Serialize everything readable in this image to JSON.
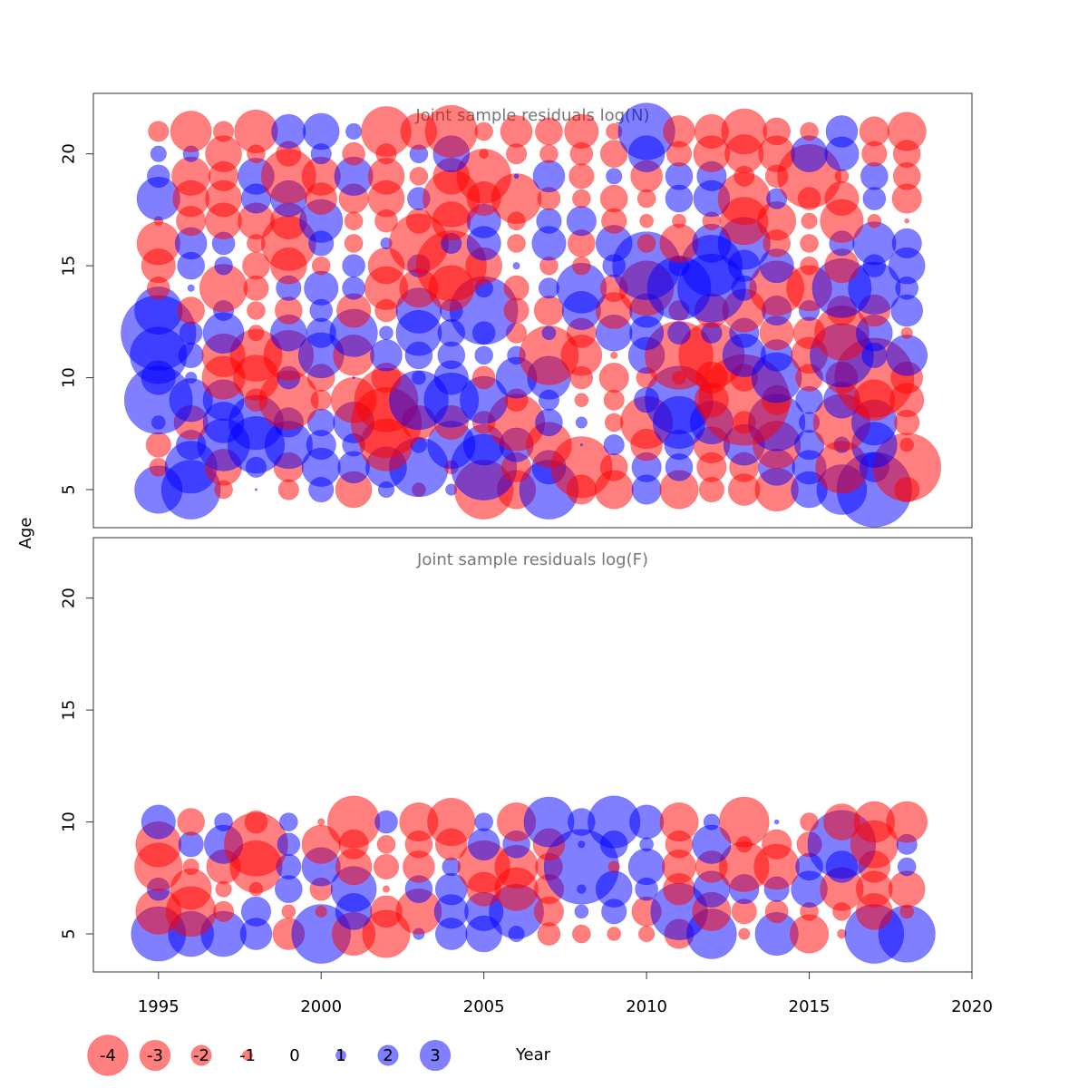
{
  "colors": {
    "negative": "#ff0000",
    "positive": "#0000ff",
    "bubble_opacity": 0.5,
    "panel_title": "#777777",
    "axis": "#333333"
  },
  "chart_data": [
    {
      "type": "scatter",
      "encoding": "bubble",
      "title": "Joint sample residuals log(N)",
      "xlabel": "Year",
      "ylabel": "Age",
      "xlim": [
        1993,
        2020
      ],
      "ylim": [
        3.3,
        22.7
      ],
      "xticks": [
        1995,
        2000,
        2005,
        2010,
        2015,
        2020
      ],
      "yticks": [
        5,
        10,
        15,
        20
      ],
      "grid": false,
      "years": [
        1995,
        1996,
        1997,
        1998,
        1999,
        2000,
        2001,
        2002,
        2003,
        2004,
        2005,
        2006,
        2007,
        2008,
        2009,
        2010,
        2011,
        2012,
        2013,
        2014,
        2015,
        2016,
        2017,
        2018
      ],
      "ages": [
        5,
        6,
        7,
        8,
        9,
        10,
        11,
        12,
        13,
        14,
        15,
        16,
        17,
        18,
        19,
        20,
        21
      ],
      "residuals_by_age": [
        [
          2.1,
          2.6,
          -0.8,
          0.1,
          -0.9,
          1.1,
          -1.6,
          0.7,
          -0.6,
          0.5,
          -2.6,
          -1.7,
          2.6,
          -1.3,
          -1.7,
          1.3,
          -1.7,
          -1.1,
          -1.4,
          -1.9,
          1.6,
          2.2,
          3.3,
          -1.1
        ],
        [
          -0.8,
          2.3,
          -1.6,
          0.9,
          -1.3,
          1.7,
          1.4,
          1.8,
          2.6,
          -0.6,
          2.9,
          -1.3,
          1.5,
          -2.7,
          -1.2,
          1.3,
          1.2,
          -1.3,
          -1.3,
          1.6,
          1.5,
          -2.3,
          1.3,
          -3.0
        ],
        [
          -1.1,
          1.3,
          2.3,
          2.5,
          2.1,
          1.3,
          1.0,
          -2.3,
          0.7,
          2.1,
          1.8,
          1.5,
          -2.0,
          0.1,
          0.9,
          -1.4,
          1.3,
          -1.6,
          1.8,
          -2.1,
          1.3,
          0.7,
          2.0,
          -0.6
        ],
        [
          0.6,
          -1.5,
          1.8,
          2.4,
          1.3,
          1.2,
          1.8,
          -3.1,
          -1.5,
          -1.5,
          -1.0,
          -2.5,
          1.2,
          0.5,
          -0.8,
          -2.3,
          2.3,
          1.9,
          -1.0,
          2.5,
          0.9,
          -2.5,
          2.0,
          -1.1
        ],
        [
          3.0,
          1.9,
          1.8,
          -1.0,
          -2.6,
          -0.9,
          -2.0,
          -2.8,
          2.6,
          2.4,
          2.1,
          -1.0,
          0.9,
          -0.6,
          -0.9,
          1.1,
          3.0,
          -1.5,
          -4.0,
          -1.3,
          1.2,
          1.6,
          -1.8,
          -1.5
        ],
        [
          1.5,
          0.5,
          -1.9,
          -2.0,
          1.0,
          -1.2,
          0.1,
          -1.3,
          0.6,
          1.5,
          -1.0,
          1.8,
          1.9,
          -1.0,
          -1.3,
          -0.9,
          -0.6,
          -1.4,
          -1.2,
          2.2,
          -1.2,
          -1.4,
          -3.5,
          -1.4
        ],
        [
          2.5,
          1.1,
          -1.9,
          -2.3,
          -2.2,
          2.0,
          -1.8,
          1.4,
          1.2,
          1.2,
          0.8,
          0.8,
          -2.6,
          -1.8,
          -0.3,
          1.6,
          -3.0,
          -2.9,
          1.9,
          1.4,
          -1.6,
          2.8,
          1.1,
          1.8
        ],
        [
          3.3,
          1.0,
          1.8,
          -0.7,
          1.6,
          1.3,
          2.1,
          0.6,
          2.0,
          1.2,
          1.0,
          -0.9,
          0.6,
          -1.3,
          1.6,
          1.5,
          1.0,
          0.9,
          1.3,
          -1.5,
          -1.4,
          -2.4,
          1.6,
          -0.5
        ],
        [
          2.1,
          -1.2,
          0.9,
          -0.8,
          -1.2,
          1.0,
          -1.5,
          -1.0,
          2.0,
          1.0,
          3.0,
          -1.1,
          -1.3,
          1.7,
          -1.6,
          1.5,
          -0.9,
          -1.5,
          -1.9,
          1.3,
          0.9,
          -1.3,
          -1.4,
          1.4
        ],
        [
          -1.0,
          0.3,
          -2.1,
          -1.1,
          1.1,
          1.5,
          1.0,
          -1.9,
          -1.7,
          -2.0,
          0.8,
          -1.1,
          0.9,
          2.2,
          -1.2,
          -2.4,
          2.8,
          3.0,
          1.1,
          -2.4,
          -2.0,
          2.6,
          2.3,
          1.0
        ],
        [
          -1.5,
          1.2,
          0.8,
          -1.2,
          -1.6,
          -0.8,
          1.0,
          -1.6,
          1.0,
          -3.1,
          -1.6,
          0.3,
          -0.8,
          -0.8,
          1.0,
          3.0,
          0.9,
          2.7,
          1.4,
          1.5,
          -0.8,
          -1.5,
          1.0,
          1.6
        ],
        [
          -1.9,
          1.4,
          1.0,
          -0.8,
          -2.4,
          1.1,
          -0.8,
          0.5,
          -2.6,
          0.9,
          1.5,
          -0.8,
          1.5,
          -1.2,
          1.6,
          -0.8,
          -1.7,
          1.7,
          2.3,
          -1.2,
          -0.8,
          1.1,
          1.9,
          1.3
        ],
        [
          -0.4,
          -1.3,
          -1.6,
          -1.6,
          -1.6,
          1.9,
          -0.8,
          -1.0,
          -1.1,
          -1.7,
          1.5,
          -0.8,
          1.1,
          1.3,
          -1.1,
          -0.6,
          -0.6,
          -0.8,
          -2.1,
          -1.7,
          -0.7,
          -1.9,
          -0.6,
          -0.2
        ],
        [
          1.9,
          -1.6,
          -1.6,
          1.3,
          1.6,
          -1.4,
          -1.3,
          -1.6,
          1.0,
          -2.5,
          -1.5,
          -2.2,
          -1.0,
          -0.8,
          -1.2,
          -0.8,
          1.2,
          1.6,
          -2.3,
          0.9,
          -1.0,
          -1.5,
          1.0,
          -1.3
        ],
        [
          1.0,
          -1.7,
          -1.3,
          1.6,
          -2.4,
          -1.7,
          1.7,
          -1.6,
          -0.8,
          -1.6,
          -2.4,
          0.2,
          1.4,
          -1.1,
          0.7,
          -1.4,
          1.2,
          1.3,
          -0.9,
          -1.0,
          -2.8,
          -0.6,
          1.2,
          -1.2
        ],
        [
          0.7,
          0.7,
          -1.6,
          -0.8,
          -1.1,
          0.9,
          -1.0,
          -0.9,
          0.8,
          1.6,
          -0.4,
          -0.9,
          -0.8,
          -1.0,
          -1.2,
          1.6,
          -1.1,
          -1.6,
          -1.7,
          -1.6,
          1.6,
          1.5,
          -1.1,
          -1.2
        ],
        [
          -0.9,
          -1.8,
          -0.9,
          -1.9,
          1.5,
          1.6,
          0.7,
          -2.2,
          -1.6,
          -2.3,
          -0.8,
          -1.4,
          -1.2,
          -1.5,
          -0.7,
          2.5,
          -1.4,
          -1.5,
          -2.0,
          -1.2,
          -0.8,
          1.4,
          -1.3,
          -1.7
        ]
      ]
    },
    {
      "type": "scatter",
      "encoding": "bubble",
      "title": "Joint sample residuals log(F)",
      "xlabel": "Year",
      "ylabel": "Age",
      "xlim": [
        1993,
        2020
      ],
      "ylim": [
        3.3,
        22.7
      ],
      "xticks": [
        1995,
        2000,
        2005,
        2010,
        2015,
        2020
      ],
      "yticks": [
        5,
        10,
        15,
        20
      ],
      "grid": false,
      "years": [
        1995,
        1996,
        1997,
        1998,
        1999,
        2000,
        2001,
        2002,
        2003,
        2004,
        2005,
        2006,
        2007,
        2008,
        2009,
        2010,
        2011,
        2012,
        2013,
        2014,
        2015,
        2016,
        2017,
        2018
      ],
      "ages": [
        5,
        6,
        7,
        8,
        9,
        10
      ],
      "residuals_by_age": [
        [
          2.4,
          2.0,
          2.0,
          1.4,
          -1.4,
          2.6,
          -1.9,
          -2.1,
          0.5,
          1.4,
          1.6,
          0.7,
          -1.0,
          -0.8,
          -0.6,
          -0.7,
          -1.3,
          2.2,
          -0.5,
          1.9,
          -1.7,
          -0.4,
          2.6,
          2.5
        ],
        [
          -2.0,
          -2.2,
          -0.9,
          1.3,
          -0.6,
          -0.5,
          1.6,
          -1.4,
          -2.0,
          1.5,
          1.7,
          2.4,
          -1.3,
          0.6,
          1.1,
          -1.3,
          2.5,
          -1.7,
          -1.1,
          -1.0,
          -0.8,
          -0.8,
          -1.6,
          -0.6
        ],
        [
          1.0,
          -1.8,
          -0.7,
          -0.6,
          1.2,
          -1.0,
          2.0,
          -0.3,
          1.2,
          1.4,
          -1.5,
          -1.9,
          -1.3,
          0.4,
          1.6,
          1.0,
          -1.4,
          1.6,
          1.3,
          1.1,
          1.6,
          -1.9,
          -1.6,
          -1.6
        ],
        [
          -2.1,
          -0.7,
          -1.5,
          -2.3,
          1.1,
          1.7,
          -1.6,
          -1.1,
          -1.4,
          0.8,
          -2.3,
          -1.9,
          -1.2,
          3.3,
          -0.5,
          1.6,
          -1.5,
          -1.4,
          -2.2,
          -2.0,
          1.2,
          1.4,
          -1.4,
          0.8
        ],
        [
          -2.0,
          1.1,
          1.7,
          -2.8,
          1.0,
          -1.7,
          -1.3,
          -0.8,
          -1.2,
          -1.4,
          1.4,
          1.2,
          -1.4,
          0.3,
          1.2,
          0.6,
          -1.2,
          1.7,
          -0.7,
          -1.3,
          -1.1,
          3.0,
          -2.1,
          0.9
        ],
        [
          1.5,
          -1.2,
          0.8,
          -1.0,
          0.8,
          -0.3,
          -2.3,
          1.0,
          -1.7,
          -2.1,
          0.8,
          -1.7,
          2.2,
          1.2,
          2.3,
          1.5,
          -1.7,
          0.7,
          -2.2,
          0.2,
          -0.8,
          -1.6,
          -1.8,
          -1.8
        ]
      ]
    }
  ],
  "legend": {
    "values": [
      -4,
      -3,
      -2,
      -1,
      0,
      1,
      2,
      3
    ],
    "labels": [
      "-4",
      "-3",
      "-2",
      "-1",
      "0",
      "1",
      "2",
      "3"
    ]
  },
  "axis": {
    "xlabel": "Year",
    "ylabel": "Age"
  }
}
